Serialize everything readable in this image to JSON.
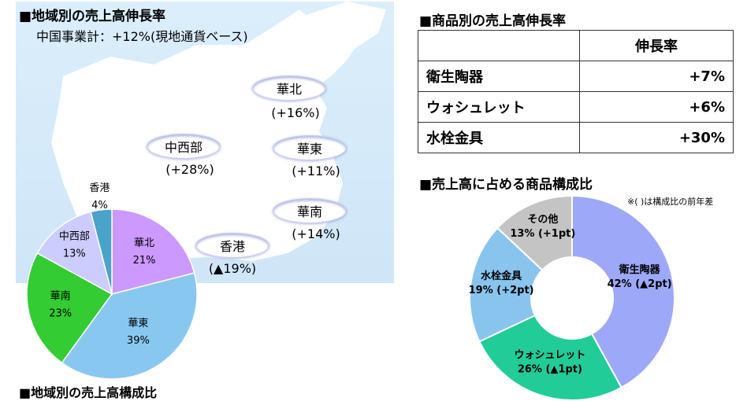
{
  "left": {
    "heading": "■地域別の売上高伸長率",
    "subtitle": "中国事業計：+12%(現地通貨ベース)",
    "regions": [
      {
        "name": "華北",
        "growth": "(+16%)"
      },
      {
        "name": "中西部",
        "growth": "(+28%)"
      },
      {
        "name": "華東",
        "growth": "(+11%)"
      },
      {
        "name": "華南",
        "growth": "(+14%)"
      },
      {
        "name": "香港",
        "growth": "(▲19%)"
      }
    ],
    "bottom_heading": "■地域別の売上高構成比"
  },
  "right": {
    "table_heading": "■商品別の売上高伸長率",
    "table": {
      "header": "伸長率",
      "rows": [
        {
          "product": "衛生陶器",
          "value": "+7%"
        },
        {
          "product": "ウォシュレット",
          "value": "+6%"
        },
        {
          "product": "水栓金具",
          "value": "+30%"
        }
      ]
    },
    "donut_heading": "■売上高に占める商品構成比",
    "donut_note": "※(  )は構成比の前年差"
  },
  "chart_data": [
    {
      "type": "pie",
      "title": "",
      "categories": [
        "華北",
        "華東",
        "華南",
        "中西部",
        "香港"
      ],
      "values": [
        21,
        39,
        23,
        13,
        4
      ],
      "labels": [
        "21%",
        "39%",
        "23%",
        "13%",
        "4%"
      ],
      "colors": [
        "#cc99ff",
        "#88c8f0",
        "#33cc33",
        "#ccccff",
        "#4aa3c8"
      ]
    },
    {
      "type": "pie",
      "subtype": "donut",
      "title": "",
      "categories": [
        "衛生陶器",
        "ウォシュレット",
        "水栓金具",
        "その他"
      ],
      "values": [
        42,
        26,
        19,
        13
      ],
      "labels": [
        "42%",
        "26%",
        "19%",
        "13%"
      ],
      "changes": [
        "(▲2pt)",
        "(▲1pt)",
        "(+2pt)",
        "(+1pt)"
      ],
      "colors": [
        "#9ea8f8",
        "#22cc99",
        "#88c4ee",
        "#c4c4c4"
      ]
    }
  ]
}
